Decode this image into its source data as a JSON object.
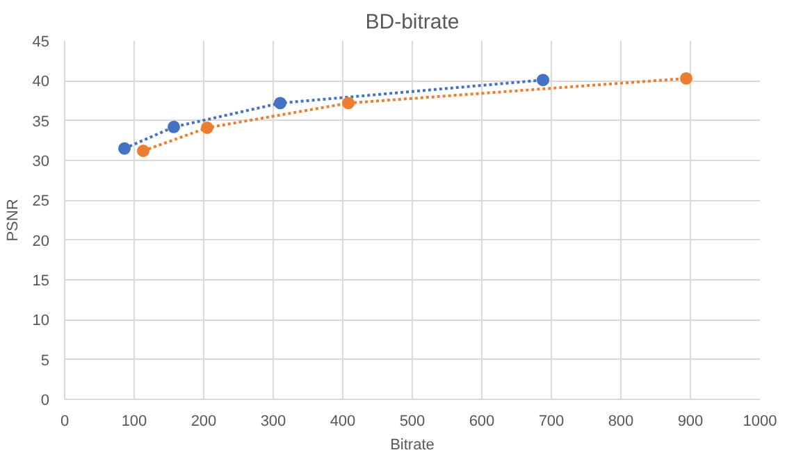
{
  "chart_data": {
    "type": "line",
    "title": "BD-bitrate",
    "xlabel": "Bitrate",
    "ylabel": "PSNR",
    "xlim": [
      0,
      1000
    ],
    "xticks": [
      0,
      100,
      200,
      300,
      400,
      500,
      600,
      700,
      800,
      900,
      1000
    ],
    "ylim": [
      0,
      45
    ],
    "yticks": [
      0,
      5,
      10,
      15,
      20,
      25,
      30,
      35,
      40,
      45
    ],
    "grid": true,
    "marker": "circle",
    "line_style": "dotted",
    "series": [
      {
        "color": "#4472c4",
        "x": [
          86,
          157,
          310,
          688
        ],
        "values": [
          31.5,
          34.2,
          37.2,
          40.1
        ]
      },
      {
        "color": "#ed7d31",
        "x": [
          113,
          205,
          408,
          894
        ],
        "values": [
          31.2,
          34.1,
          37.2,
          40.3
        ]
      }
    ]
  }
}
